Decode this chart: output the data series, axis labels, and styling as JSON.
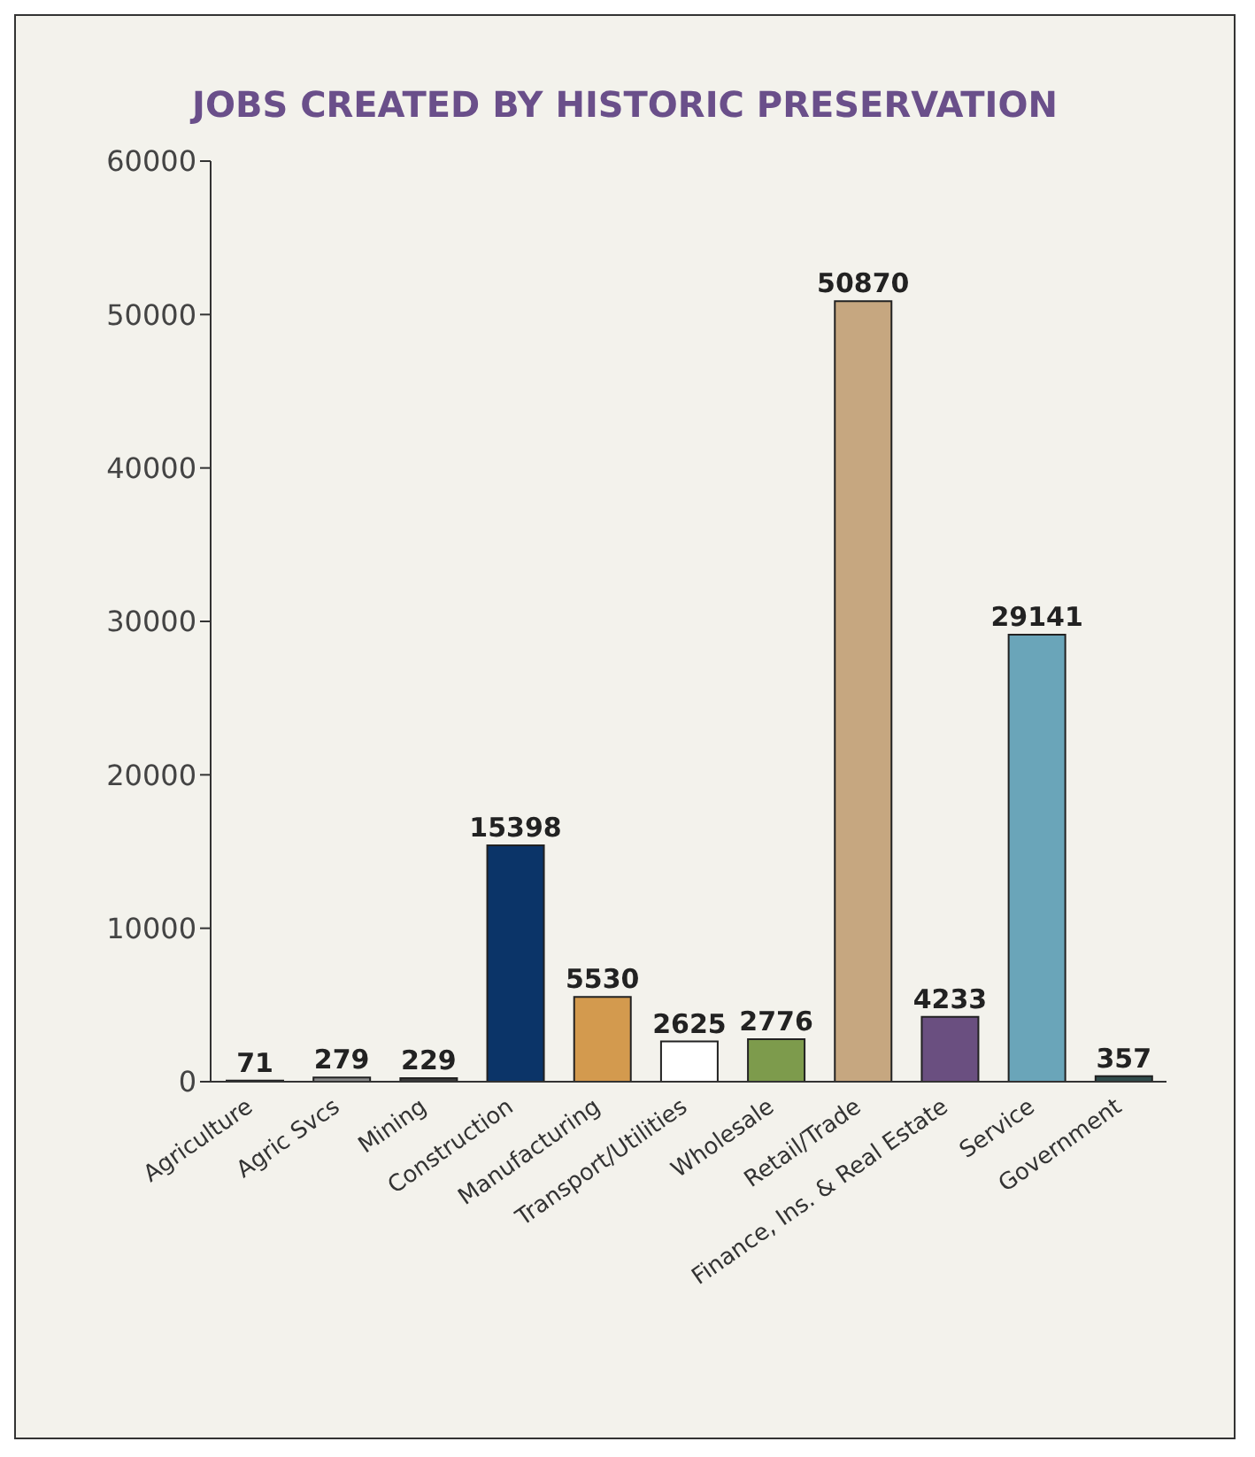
{
  "chart_data": {
    "type": "bar",
    "title": "JOBS CREATED BY HISTORIC PRESERVATION",
    "categories": [
      "Agriculture",
      "Agric Svcs",
      "Mining",
      "Construction",
      "Manufacturing",
      "Transport/Utilities",
      "Wholesale",
      "Retail/Trade",
      "Finance, Ins. & Real Estate",
      "Service",
      "Government"
    ],
    "values": [
      71,
      279,
      229,
      15398,
      5530,
      2625,
      2776,
      50870,
      4233,
      29141,
      357
    ],
    "colors": [
      "#555555",
      "#8a8a8a",
      "#3a3a3a",
      "#0b3468",
      "#d39a4e",
      "#ffffff",
      "#7d9b4c",
      "#c6a780",
      "#6a4f80",
      "#6aa5b9",
      "#2f4b4b"
    ],
    "ylim": [
      0,
      60000
    ],
    "yticks": [
      0,
      10000,
      20000,
      30000,
      40000,
      50000,
      60000
    ],
    "data_labels": true,
    "grid": false,
    "legend": false
  }
}
